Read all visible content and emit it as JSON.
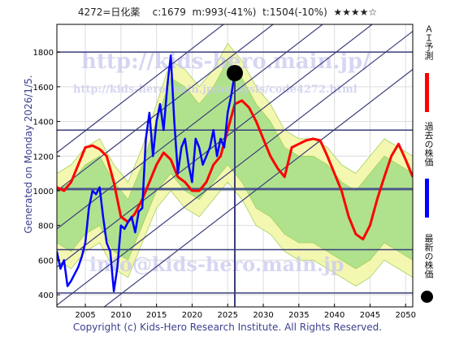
{
  "header": {
    "title": "4272=日化薬    c:1679  m:993(-41%)  t:1504(-10%)  ★★★★☆"
  },
  "side_label": "Generated on Monday 2026/1/5.",
  "copyright": "Copyright (c) Kids-Hero Research Institute. All Rights Reserved.",
  "legend": {
    "forecast_label": "ＡＩ予測",
    "past_label": "過去の株価",
    "latest_label": "最新の株価",
    "forecast_color": "#ff0000",
    "past_color": "#0000ff",
    "latest_color": "#000000"
  },
  "watermarks": {
    "url": "http://kids-hero.main.jp/",
    "url2": "http://kids-hero.main.jp/analysis/code4272.html",
    "email": "info@kids-hero.main.jp"
  },
  "chart_data": {
    "type": "line",
    "title": "4272=日化薬    c:1679  m:993(-41%)  t:1504(-10%)  ★★★★☆",
    "xlabel": "",
    "ylabel": "",
    "xlim": [
      2001,
      2051
    ],
    "ylim": [
      330,
      1960
    ],
    "x_ticks": [
      2005,
      2010,
      2015,
      2020,
      2025,
      2030,
      2035,
      2040,
      2045,
      2050
    ],
    "y_ticks": [
      400,
      600,
      800,
      1000,
      1200,
      1400,
      1600,
      1800
    ],
    "grid": true,
    "horizontal_levels": [
      1800,
      1350,
      1010,
      660,
      410
    ],
    "current_year_line": 2026,
    "current_price": 1679,
    "current_price_year": 2026,
    "trend_channel_lines": [
      {
        "x1": 2001,
        "y1": 120,
        "x2": 2051,
        "y2": 1700
      },
      {
        "x1": 2001,
        "y1": 340,
        "x2": 2051,
        "y2": 1920
      },
      {
        "x1": 2001,
        "y1": 560,
        "x2": 2051,
        "y2": 2140
      },
      {
        "x1": 2001,
        "y1": 780,
        "x2": 2051,
        "y2": 2360
      },
      {
        "x1": 2001,
        "y1": 1000,
        "x2": 2051,
        "y2": 2580
      },
      {
        "x1": 2001,
        "y1": 1220,
        "x2": 2051,
        "y2": 2800
      }
    ],
    "band_outer": {
      "x": [
        2001,
        2003,
        2005,
        2007,
        2009,
        2011,
        2013,
        2015,
        2017,
        2019,
        2021,
        2023,
        2025,
        2027,
        2029,
        2031,
        2033,
        2035,
        2037,
        2039,
        2041,
        2043,
        2045,
        2047,
        2049,
        2051
      ],
      "upper": [
        1100,
        1150,
        1250,
        1300,
        1150,
        1050,
        1250,
        1500,
        1750,
        1700,
        1600,
        1700,
        1850,
        1750,
        1600,
        1500,
        1350,
        1300,
        1300,
        1250,
        1150,
        1100,
        1200,
        1300,
        1250,
        1200
      ],
      "lower": [
        600,
        550,
        650,
        700,
        550,
        500,
        700,
        900,
        1000,
        900,
        850,
        950,
        1050,
        950,
        800,
        750,
        650,
        600,
        600,
        550,
        500,
        450,
        500,
        600,
        550,
        500
      ]
    },
    "band_inner": {
      "x": [
        2001,
        2003,
        2005,
        2007,
        2009,
        2011,
        2013,
        2015,
        2017,
        2019,
        2021,
        2023,
        2025,
        2027,
        2029,
        2031,
        2033,
        2035,
        2037,
        2039,
        2041,
        2043,
        2045,
        2047,
        2049,
        2051
      ],
      "upper": [
        1000,
        1050,
        1150,
        1200,
        1050,
        950,
        1150,
        1400,
        1650,
        1600,
        1500,
        1600,
        1750,
        1650,
        1500,
        1400,
        1250,
        1200,
        1200,
        1150,
        1050,
        1000,
        1100,
        1200,
        1150,
        1100
      ],
      "lower": [
        700,
        650,
        750,
        800,
        650,
        600,
        800,
        1000,
        1100,
        1000,
        950,
        1050,
        1150,
        1050,
        900,
        850,
        750,
        700,
        700,
        650,
        600,
        550,
        600,
        700,
        650,
        600
      ]
    },
    "series": [
      {
        "name": "ＡＩ予測",
        "x": [
          2001,
          2002,
          2003,
          2004,
          2005,
          2006,
          2007,
          2008,
          2009,
          2010,
          2011,
          2012,
          2013,
          2014,
          2015,
          2016,
          2017,
          2018,
          2019,
          2020,
          2021,
          2022,
          2023,
          2024,
          2025,
          2026,
          2027,
          2028,
          2029,
          2030,
          2031,
          2032,
          2033,
          2034,
          2035,
          2036,
          2037,
          2038,
          2039,
          2040,
          2041,
          2042,
          2043,
          2044,
          2045,
          2046,
          2047,
          2048,
          2049,
          2050,
          2051
        ],
        "values": [
          1020,
          1000,
          1050,
          1150,
          1250,
          1260,
          1240,
          1200,
          1050,
          850,
          820,
          870,
          950,
          1050,
          1150,
          1220,
          1180,
          1080,
          1050,
          1000,
          1000,
          1050,
          1150,
          1200,
          1350,
          1500,
          1520,
          1480,
          1400,
          1300,
          1200,
          1130,
          1080,
          1250,
          1270,
          1290,
          1300,
          1290,
          1200,
          1100,
          1000,
          850,
          750,
          720,
          800,
          950,
          1080,
          1200,
          1270,
          1180,
          1080
        ]
      },
      {
        "name": "過去の株価",
        "x": [
          2001,
          2001.5,
          2002,
          2002.5,
          2003,
          2003.5,
          2004,
          2004.5,
          2005,
          2005.5,
          2006,
          2006.5,
          2007,
          2007.5,
          2008,
          2008.5,
          2009,
          2009.5,
          2010,
          2010.5,
          2011,
          2011.5,
          2012,
          2012.5,
          2013,
          2013.5,
          2014,
          2014.5,
          2015,
          2015.5,
          2016,
          2016.5,
          2017,
          2017.5,
          2018,
          2018.5,
          2019,
          2019.5,
          2020,
          2020.5,
          2021,
          2021.5,
          2022,
          2022.5,
          2023,
          2023.5,
          2024,
          2024.5,
          2025,
          2025.5,
          2026
        ],
        "values": [
          650,
          550,
          600,
          450,
          480,
          520,
          560,
          620,
          700,
          900,
          1000,
          980,
          1020,
          850,
          700,
          650,
          420,
          560,
          800,
          780,
          820,
          850,
          760,
          880,
          900,
          1300,
          1450,
          1200,
          1400,
          1500,
          1350,
          1600,
          1780,
          1400,
          1100,
          1250,
          1300,
          1150,
          1050,
          1300,
          1250,
          1150,
          1200,
          1250,
          1350,
          1200,
          1300,
          1250,
          1450,
          1550,
          1679
        ]
      }
    ]
  }
}
